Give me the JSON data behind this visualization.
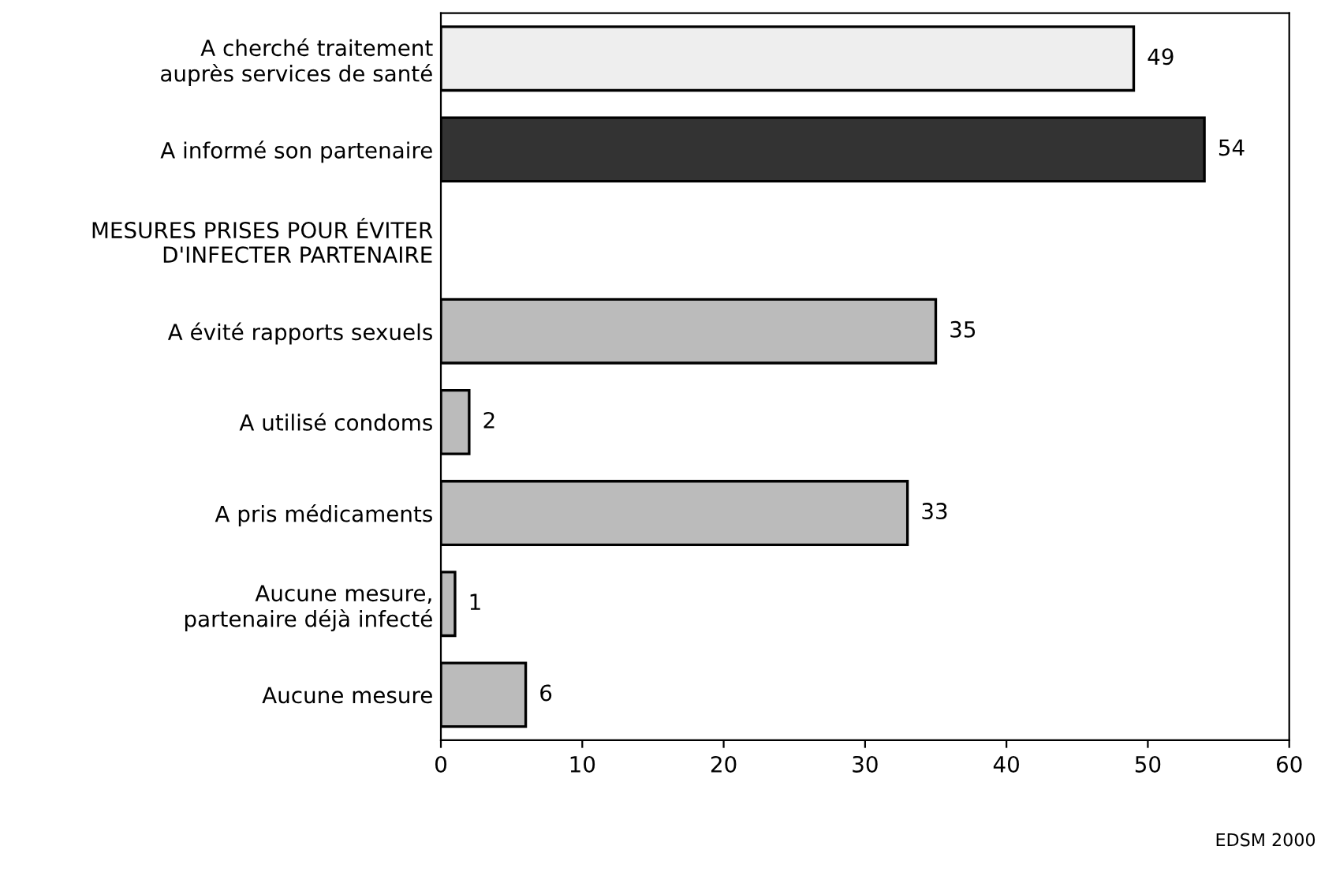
{
  "chart_data": {
    "type": "bar",
    "orientation": "horizontal",
    "categories": [
      "A cherché traitement\nauprès services de santé",
      "A informé son partenaire",
      "MESURES PRISES POUR ÉVITER\nD'INFECTER PARTENAIRE",
      "A évité rapports sexuels",
      "A utilisé condoms",
      "A pris médicaments",
      "Aucune mesure,\npartenaire déjà infecté",
      "Aucune mesure"
    ],
    "values": [
      49,
      54,
      null,
      35,
      2,
      33,
      1,
      6
    ],
    "colors": [
      "#eeeeee",
      "#333333",
      null,
      "#bbbbbb",
      "#bbbbbb",
      "#bbbbbb",
      "#bbbbbb",
      "#bbbbbb"
    ],
    "data_labels": true,
    "xlim": [
      0,
      60
    ],
    "xticks": [
      0,
      10,
      20,
      30,
      40,
      50,
      60
    ],
    "grid": false,
    "annotations": [
      "EDSM 2000"
    ]
  }
}
